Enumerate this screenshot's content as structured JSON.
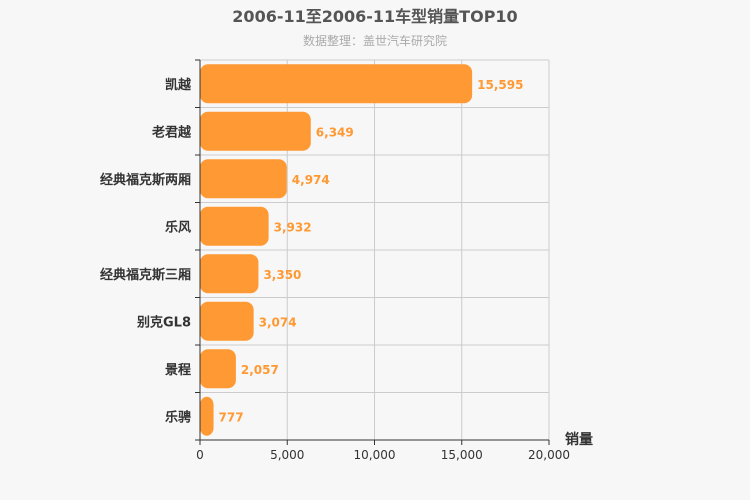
{
  "chart_data": {
    "type": "bar",
    "orientation": "horizontal",
    "title": "2006-11至2006-11车型销量TOP10",
    "subtitle": "数据整理：盖世汽车研究院",
    "xlabel": "销量",
    "ylabel": "",
    "categories": [
      "凯越",
      "老君越",
      "经典福克斯两厢",
      "乐风",
      "经典福克斯三厢",
      "别克GL8",
      "景程",
      "乐骋"
    ],
    "values": [
      15595,
      6349,
      4974,
      3932,
      3350,
      3074,
      2057,
      777
    ],
    "value_labels": [
      "15,595",
      "6,349",
      "4,974",
      "3,932",
      "3,350",
      "3,074",
      "2,057",
      "777"
    ],
    "xlim": [
      0,
      20000
    ],
    "xticks": [
      0,
      5000,
      10000,
      15000,
      20000
    ],
    "xtick_labels": [
      "0",
      "5,000",
      "10,000",
      "15,000",
      "20,000"
    ],
    "grid": true,
    "bar_color": "#ff9933",
    "label_color": "#ff9933"
  }
}
